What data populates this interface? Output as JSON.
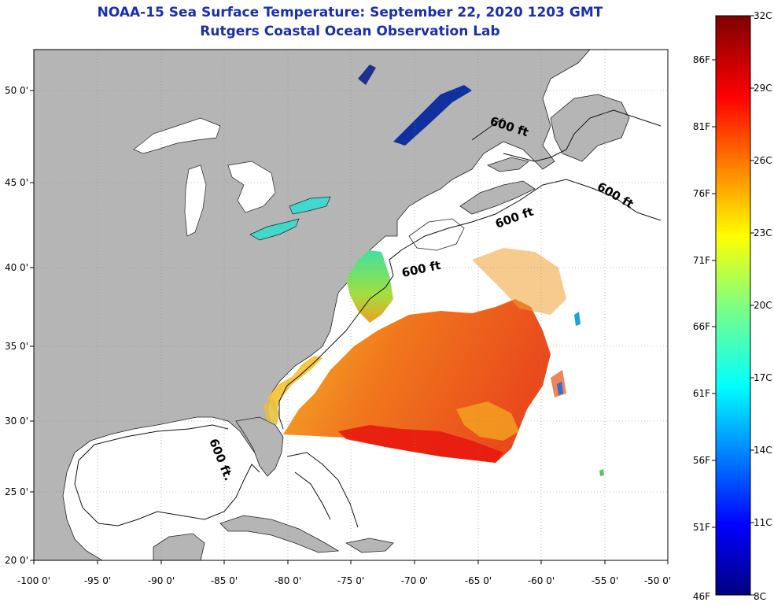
{
  "title": "NOAA-15 Sea Surface Temperature:  September 22, 2020 1203 GMT",
  "subtitle": "Rutgers Coastal Ocean Observation Lab",
  "map": {
    "lon_labels": [
      "-100 0'",
      "-95 0'",
      "-90 0'",
      "-85 0'",
      "-80 0'",
      "-75 0'",
      "-70 0'",
      "-65 0'",
      "-60 0'",
      "-55 0'",
      "-50 0'"
    ],
    "lat_labels": [
      "50 0'",
      "45 0'",
      "40 0'",
      "35 0'",
      "30 0'",
      "25 0'",
      "20 0'"
    ],
    "depth_label": "600 ft",
    "depth_label_short": "600 ft."
  },
  "colorbar": {
    "fahrenheit_labels": [
      "86F",
      "81F",
      "76F",
      "71F",
      "66F",
      "61F",
      "56F",
      "51F",
      "46F"
    ],
    "celsius_labels": [
      "32C",
      "29C",
      "26C",
      "23C",
      "20C",
      "17C",
      "14C",
      "11C",
      "8C"
    ]
  },
  "colors": {
    "title": "#1a2fb0",
    "land": "#b5b5b5",
    "ocean_nodata": "#ffffff",
    "warm": "#f06a10",
    "hot": "#e01010",
    "cool": "#30c8d8"
  }
}
